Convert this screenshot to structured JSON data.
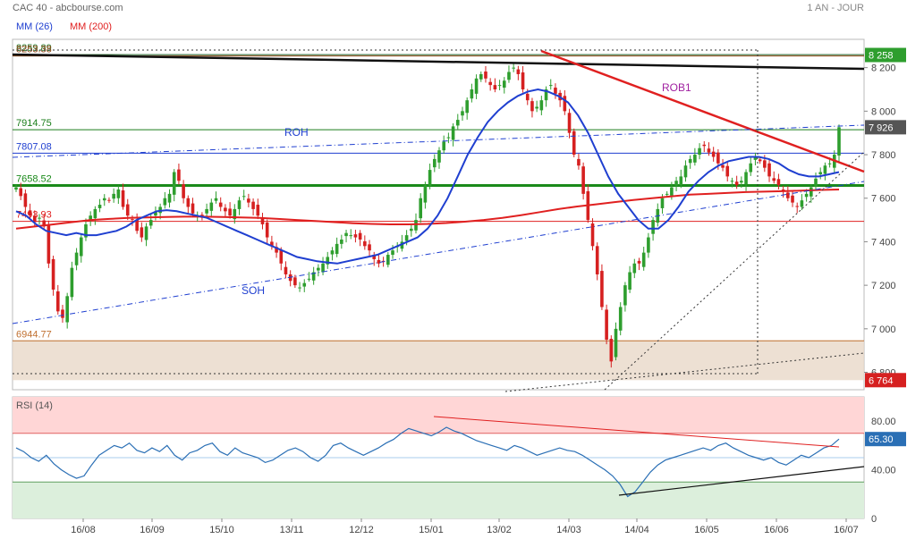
{
  "header": {
    "title": "CAC 40 - abcbourse.com",
    "period": "1 AN - JOUR"
  },
  "colors": {
    "candle_up": "#2e9e2e",
    "candle_down": "#d62020",
    "mm26": "#1f3fd0",
    "mm200": "#e02020",
    "price_tag": "#333333",
    "low_tag": "#d62020",
    "rsi_line": "#2a6fb5",
    "rsi_overbought_zone": "#ffd6d6",
    "rsi_oversold_zone": "#dcefdc"
  },
  "chart_data": [
    {
      "type": "candlestick",
      "panel": "price",
      "title": "CAC 40",
      "legend": [
        {
          "name": "MM (26)",
          "color": "#1f3fd0"
        },
        {
          "name": "MM (200)",
          "color": "#e02020"
        }
      ],
      "x_tick_labels": [
        "16/08",
        "16/09",
        "15/10",
        "13/11",
        "12/12",
        "15/01",
        "13/02",
        "14/03",
        "14/04",
        "16/05",
        "16/06",
        "16/07"
      ],
      "y_tick_labels": [
        "8 200",
        "8 000",
        "7 800",
        "7 600",
        "7 400",
        "7 200",
        "7 000",
        "6 800"
      ],
      "ylim": [
        6720,
        8330
      ],
      "last_price_tag": "7 926",
      "high_tag": "8 258",
      "low_tag": "6 764",
      "levels": [
        {
          "label": "8259.89",
          "value": 8259.89
        },
        {
          "label": "8253.38",
          "value": 8253.38
        },
        {
          "label": "7914.75",
          "value": 7914.75
        },
        {
          "label": "7807.08",
          "value": 7807.08
        },
        {
          "label": "7658.52",
          "value": 7658.52
        },
        {
          "label": "7493.93",
          "value": 7493.93
        },
        {
          "label": "6944.77",
          "value": 6944.77
        }
      ],
      "annotations": [
        "ROH",
        "ROB1",
        "SOH"
      ],
      "closes": [
        7650,
        7610,
        7560,
        7520,
        7490,
        7510,
        7470,
        7300,
        7180,
        7080,
        7050,
        7150,
        7280,
        7350,
        7420,
        7480,
        7520,
        7550,
        7570,
        7600,
        7590,
        7620,
        7640,
        7560,
        7520,
        7500,
        7450,
        7420,
        7470,
        7500,
        7540,
        7560,
        7600,
        7620,
        7720,
        7680,
        7600,
        7560,
        7530,
        7520,
        7510,
        7550,
        7580,
        7600,
        7560,
        7540,
        7520,
        7550,
        7590,
        7610,
        7580,
        7550,
        7520,
        7480,
        7420,
        7380,
        7350,
        7300,
        7250,
        7220,
        7200,
        7190,
        7210,
        7230,
        7260,
        7280,
        7300,
        7330,
        7360,
        7390,
        7410,
        7440,
        7430,
        7420,
        7410,
        7380,
        7360,
        7320,
        7300,
        7310,
        7340,
        7360,
        7380,
        7400,
        7430,
        7460,
        7500,
        7600,
        7660,
        7730,
        7780,
        7820,
        7860,
        7880,
        7930,
        7960,
        8000,
        8050,
        8100,
        8150,
        8170,
        8150,
        8120,
        8100,
        8120,
        8140,
        8180,
        8200,
        8170,
        8100,
        8050,
        8000,
        8020,
        8050,
        8100,
        8120,
        8080,
        8050,
        8000,
        7900,
        7800,
        7750,
        7620,
        7500,
        7380,
        7250,
        7100,
        6950,
        6850,
        7000,
        7100,
        7200,
        7260,
        7300,
        7300,
        7350,
        7420,
        7500,
        7550,
        7600,
        7620,
        7650,
        7680,
        7700,
        7750,
        7780,
        7800,
        7830,
        7840,
        7810,
        7790,
        7760,
        7740,
        7700,
        7680,
        7660,
        7680,
        7720,
        7760,
        7790,
        7770,
        7740,
        7700,
        7680,
        7660,
        7630,
        7600,
        7580,
        7560,
        7590,
        7620,
        7650,
        7690,
        7720,
        7750,
        7760,
        7800,
        7926
      ],
      "mm26": [
        7540,
        7520,
        7480,
        7450,
        7440,
        7430,
        7440,
        7430,
        7430,
        7440,
        7450,
        7470,
        7500,
        7520,
        7540,
        7545,
        7540,
        7530,
        7520,
        7510,
        7490,
        7470,
        7450,
        7430,
        7410,
        7390,
        7370,
        7350,
        7330,
        7320,
        7310,
        7305,
        7300,
        7310,
        7320,
        7330,
        7340,
        7360,
        7380,
        7400,
        7420,
        7460,
        7520,
        7600,
        7700,
        7800,
        7880,
        7950,
        8000,
        8040,
        8070,
        8090,
        8100,
        8090,
        8070,
        8040,
        7980,
        7900,
        7800,
        7700,
        7620,
        7560,
        7500,
        7460,
        7460,
        7500,
        7560,
        7630,
        7680,
        7720,
        7750,
        7770,
        7780,
        7790,
        7790,
        7780,
        7760,
        7730,
        7710,
        7700,
        7700,
        7710,
        7720
      ],
      "mm200": [
        7460,
        7470,
        7480,
        7490,
        7500,
        7505,
        7510,
        7512,
        7514,
        7515,
        7515,
        7514,
        7512,
        7510,
        7505,
        7500,
        7495,
        7490,
        7485,
        7482,
        7480,
        7480,
        7482,
        7486,
        7492,
        7500,
        7510,
        7522,
        7536,
        7550,
        7562,
        7572,
        7582,
        7592,
        7600,
        7608,
        7616,
        7620,
        7624,
        7628,
        7630,
        7632,
        7635,
        7638,
        7640
      ]
    },
    {
      "type": "line",
      "panel": "rsi",
      "title": "RSI (14)",
      "y_tick_labels": [
        "80.00",
        "40.00",
        "0"
      ],
      "ylim": [
        0,
        100
      ],
      "last_value_tag": "65.30",
      "overbought": 70,
      "oversold": 30,
      "values": [
        58,
        55,
        50,
        47,
        52,
        45,
        40,
        36,
        33,
        35,
        44,
        52,
        56,
        60,
        58,
        62,
        56,
        54,
        58,
        55,
        60,
        52,
        48,
        54,
        56,
        60,
        62,
        55,
        52,
        58,
        54,
        52,
        50,
        46,
        48,
        52,
        56,
        58,
        55,
        50,
        47,
        52,
        60,
        62,
        58,
        55,
        52,
        55,
        58,
        62,
        65,
        70,
        74,
        72,
        70,
        68,
        71,
        75,
        72,
        70,
        67,
        64,
        62,
        60,
        58,
        56,
        60,
        58,
        55,
        52,
        54,
        56,
        58,
        56,
        55,
        52,
        48,
        44,
        40,
        35,
        28,
        18,
        22,
        30,
        38,
        44,
        48,
        50,
        52,
        54,
        56,
        58,
        56,
        60,
        62,
        58,
        55,
        52,
        50,
        48,
        50,
        46,
        44,
        48,
        52,
        50,
        54,
        58,
        60,
        65.3
      ]
    }
  ]
}
